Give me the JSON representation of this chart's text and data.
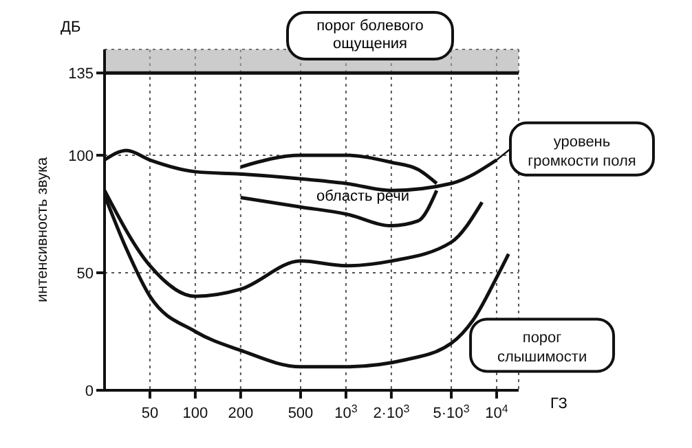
{
  "chart_data": {
    "type": "line",
    "ylabel": "интенсивность звука",
    "xlabel": "ГЗ",
    "log": "x",
    "xlim": [
      25,
      14000
    ],
    "ylim": [
      0,
      145
    ],
    "xticks": [
      50,
      100,
      200,
      500,
      {
        "value": 1000,
        "label": "10$^{3}$"
      },
      {
        "value": 2000,
        "label": "2·10$^{3}$"
      },
      {
        "value": 5000,
        "label": "5·10$^{3}$"
      },
      {
        "value": 10000,
        "label": "10$^{4}$"
      }
    ],
    "yticks": [
      0,
      50,
      100,
      135
    ],
    "grid": true,
    "legend": false,
    "color": "#111111",
    "series": [
      {
        "x": [
          25,
          35,
          50,
          100,
          200,
          500,
          1000,
          2500,
          5000,
          7000,
          10000,
          12000
        ],
        "values": [
          83,
          60,
          40,
          25,
          17,
          10,
          10,
          13,
          20,
          30,
          48,
          58
        ]
      },
      {
        "x": [
          25,
          50,
          100,
          200,
          500,
          1000,
          2000,
          5000,
          8000
        ],
        "values": [
          85,
          53,
          40,
          43,
          55,
          53,
          55,
          63,
          80
        ]
      },
      {
        "x": [
          25,
          35,
          50,
          100,
          200,
          500,
          1000,
          2000,
          5000,
          10000
        ],
        "values": [
          98,
          102,
          98,
          93,
          92,
          90,
          88,
          85,
          88,
          98
        ]
      },
      {
        "x": [
          200,
          500,
          1000,
          2000,
          3000,
          4000
        ],
        "values": [
          95,
          100,
          100,
          97,
          94,
          88
        ]
      },
      {
        "x": [
          200,
          500,
          1000,
          2000,
          3000,
          4000
        ],
        "values": [
          82,
          78,
          75,
          70,
          72,
          85
        ]
      }
    ],
    "ref_lines": [
      {
        "axis": "y",
        "value": 135,
        "label": "порог болевого ощущения"
      }
    ],
    "bands": [
      {
        "axis": "y",
        "from": 135,
        "to": 145,
        "color": "#aaaaaa"
      }
    ],
    "annotations": [
      "ДБ",
      "область речи",
      {
        "text": "уровень громкости поля",
        "x": 10000,
        "y": 98
      },
      {
        "text": "порог слышимости",
        "x": 7000,
        "y": 25
      }
    ]
  }
}
